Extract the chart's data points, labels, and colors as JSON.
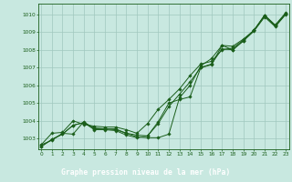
{
  "title": "Graphe pression niveau de la mer (hPa)",
  "bg_color": "#c8e8e0",
  "plot_bg_color": "#c8e8e0",
  "title_bg_color": "#2d6e2d",
  "title_text_color": "#ffffff",
  "grid_color": "#a0c8be",
  "line_color": "#1a5e1a",
  "marker_color": "#1a5e1a",
  "xlim": [
    -0.3,
    23.3
  ],
  "ylim": [
    1002.4,
    1010.6
  ],
  "xticks": [
    0,
    1,
    2,
    3,
    4,
    5,
    6,
    7,
    8,
    9,
    10,
    11,
    12,
    13,
    14,
    15,
    16,
    17,
    18,
    19,
    20,
    21,
    22,
    23
  ],
  "yticks": [
    1003,
    1004,
    1005,
    1006,
    1007,
    1008,
    1009,
    1010
  ],
  "series": [
    [
      1002.65,
      1002.9,
      1003.3,
      1003.25,
      1003.95,
      1003.55,
      1003.55,
      1003.55,
      1003.3,
      1003.2,
      1003.15,
      1003.95,
      1005.0,
      1005.2,
      1005.35,
      1007.0,
      1007.2,
      1008.05,
      1008.0,
      1008.5,
      1009.05,
      1009.85,
      1009.3,
      1010.0
    ],
    [
      1002.65,
      1003.3,
      1003.35,
      1004.0,
      1003.8,
      1003.7,
      1003.65,
      1003.65,
      1003.5,
      1003.3,
      1003.85,
      1004.65,
      1005.2,
      1005.8,
      1006.55,
      1007.2,
      1007.35,
      1008.0,
      1008.1,
      1008.55,
      1009.1,
      1009.95,
      1009.4,
      1010.1
    ],
    [
      1002.55,
      1002.95,
      1003.25,
      1003.75,
      1003.9,
      1003.6,
      1003.55,
      1003.5,
      1003.3,
      1003.1,
      1003.05,
      1003.05,
      1003.25,
      1005.3,
      1006.0,
      1007.1,
      1007.5,
      1008.25,
      1008.0,
      1008.5,
      1009.1,
      1009.9,
      1009.35,
      1010.05
    ],
    [
      1002.55,
      1002.95,
      1003.25,
      1003.75,
      1003.9,
      1003.5,
      1003.5,
      1003.45,
      1003.2,
      1003.05,
      1003.15,
      1003.85,
      1004.8,
      1005.5,
      1006.2,
      1007.0,
      1007.15,
      1008.25,
      1008.2,
      1008.6,
      1009.1,
      1009.95,
      1009.35,
      1010.05
    ]
  ]
}
